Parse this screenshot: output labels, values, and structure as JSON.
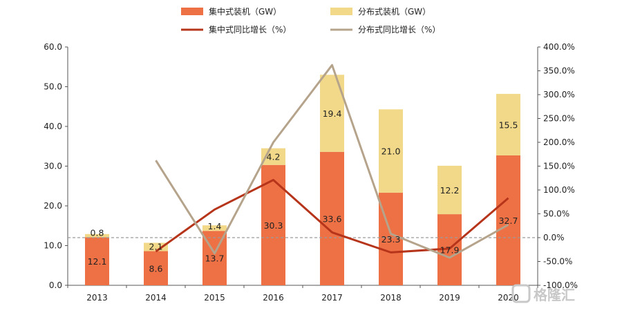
{
  "chart_data": {
    "type": "bar",
    "categories": [
      "2013",
      "2014",
      "2015",
      "2016",
      "2017",
      "2018",
      "2019",
      "2020"
    ],
    "bar_series": [
      {
        "name": "集中式装机（GW）",
        "color": "#ee7146",
        "values": [
          12.1,
          8.6,
          13.7,
          30.3,
          33.6,
          23.3,
          17.9,
          32.7
        ]
      },
      {
        "name": "分布式装机（GW）",
        "color": "#f2d98a",
        "values": [
          0.8,
          2.1,
          1.4,
          4.2,
          19.4,
          21.0,
          12.2,
          15.5
        ]
      }
    ],
    "line_series": [
      {
        "name": "集中式同比增长（%）",
        "color": "#b5341a",
        "values": [
          null,
          -29,
          59,
          121,
          11,
          -31,
          -23,
          83
        ]
      },
      {
        "name": "分布式同比增长（%）",
        "color": "#b5a48b",
        "values": [
          null,
          162,
          -33,
          200,
          362,
          8,
          -42,
          27
        ]
      }
    ],
    "y_left": {
      "min": 0,
      "max": 60,
      "step": 10,
      "tick_labels": [
        "0.0",
        "10.0",
        "20.0",
        "30.0",
        "40.0",
        "50.0",
        "60.0"
      ]
    },
    "y_right": {
      "min": -100,
      "max": 400,
      "step": 50,
      "tick_labels": [
        "-100.0%",
        "-50.0%",
        "0.0%",
        "50.0%",
        "100.0%",
        "150.0%",
        "200.0%",
        "250.0%",
        "300.0%",
        "350.0%",
        "400.0%"
      ]
    },
    "reference_line": {
      "axis": "right",
      "value": 0,
      "style": "dashed"
    },
    "grid": false,
    "legend_position": "top"
  },
  "watermark": {
    "text": "格隆汇"
  }
}
